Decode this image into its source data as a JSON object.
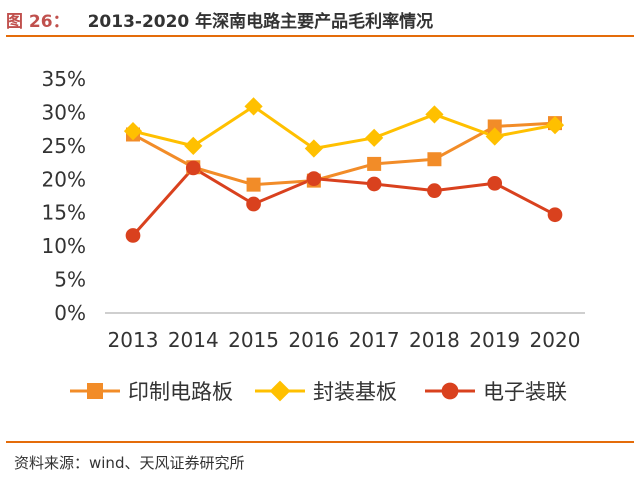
{
  "header": {
    "figure_label": "图 26：",
    "title": "2013-2020 年深南电路主要产品毛利率情况"
  },
  "source": "资料来源：wind、天风证券研究所",
  "chart_data": {
    "type": "line",
    "categories": [
      "2013",
      "2014",
      "2015",
      "2016",
      "2017",
      "2018",
      "2019",
      "2020"
    ],
    "y_ticks": [
      "0%",
      "5%",
      "10%",
      "15%",
      "20%",
      "25%",
      "30%",
      "35%"
    ],
    "ylim": [
      0,
      35
    ],
    "grid": false,
    "legend_position": "bottom",
    "series": [
      {
        "name": "印制电路板",
        "color": "#f28c28",
        "marker": "square",
        "values": [
          26.7,
          21.8,
          19.2,
          19.8,
          22.3,
          23.0,
          27.9,
          28.4
        ]
      },
      {
        "name": "封装基板",
        "color": "#ffc000",
        "marker": "diamond",
        "values": [
          27.2,
          25.0,
          30.9,
          24.6,
          26.2,
          29.7,
          26.4,
          28.1
        ]
      },
      {
        "name": "电子装联",
        "color": "#d9411e",
        "marker": "circle",
        "values": [
          11.6,
          21.7,
          16.3,
          20.1,
          19.3,
          18.3,
          19.4,
          14.7
        ]
      }
    ]
  }
}
